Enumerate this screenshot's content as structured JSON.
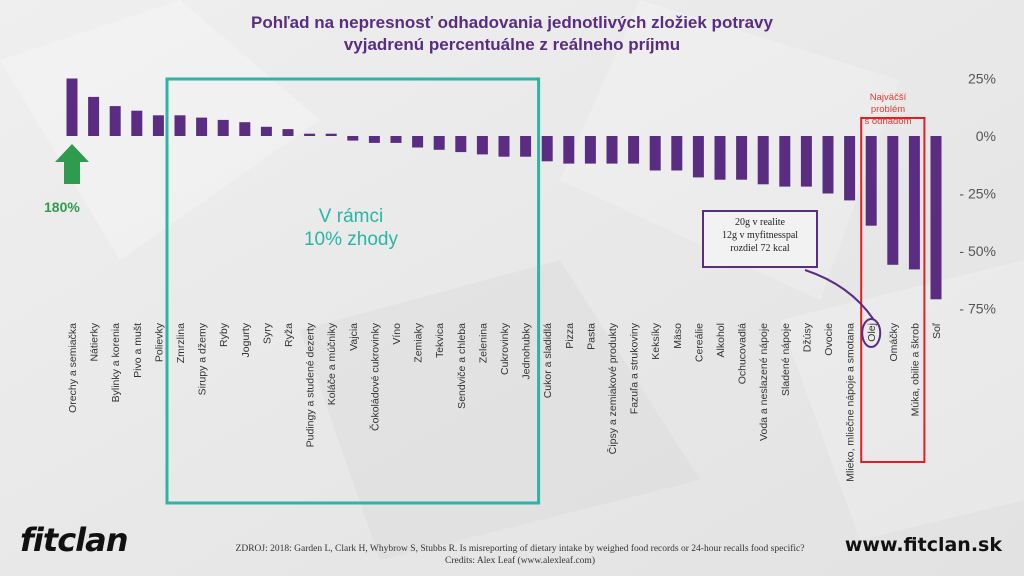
{
  "title_lines": [
    "Pohľad na nepresnosť odhadovania jednotlivých zložiek potravy",
    "vyjadrenú percentuálne z reálneho príjmu"
  ],
  "chart_data": {
    "type": "bar",
    "categories": [
      "Orechy a semiačka",
      "Nátierky",
      "Bylinky a korenia",
      "Pivo a mušt",
      "Polievky",
      "Zmrzlina",
      "Sirupy a džemy",
      "Ryby",
      "Jogurty",
      "Syry",
      "Ryža",
      "Pudingy a studené dezerty",
      "Koláče a múčniky",
      "Vajcia",
      "Čokoládové cukrovinky",
      "Víno",
      "Zemiaky",
      "Tekvica",
      "Sendviče a chleba",
      "Zelenina",
      "Cukrovinky",
      "Jednohubky",
      "Cukor a sladidlá",
      "Pizza",
      "Pasta",
      "Čipsy a zemiakové produkty",
      "Fazuľa a strukoviny",
      "Keksíky",
      "Mäso",
      "Cereálie",
      "Alkohol",
      "Ochucovadlá",
      "Voda a neslazené nápoje",
      "Sladené nápoje",
      "Džúsy",
      "Ovocie",
      "Mlieko, mliečne nápoje a smotana",
      "Olej",
      "Omáčky",
      "Múka, obilie a škrob",
      "Soľ"
    ],
    "values": [
      25,
      17,
      13,
      11,
      9,
      9,
      8,
      7,
      6,
      4,
      3,
      1,
      1,
      -2,
      -3,
      -3,
      -5,
      -6,
      -7,
      -8,
      -9,
      -9,
      -11,
      -12,
      -12,
      -12,
      -12,
      -15,
      -15,
      -18,
      -19,
      -19,
      -21,
      -22,
      -22,
      -25,
      -28,
      -39,
      -56,
      -58,
      -71
    ],
    "ylim": [
      -75,
      25
    ],
    "yticks": [
      25,
      0,
      -25,
      -50,
      -75
    ],
    "ytick_labels": [
      "25%",
      "0%",
      "- 25%",
      "- 50%",
      "- 75%"
    ],
    "grid": false,
    "colors": {
      "bar": "#5a2d82",
      "agree_box": "#2ab5a5",
      "highlight_box": "#e31e24",
      "arrow": "#2f9b4f"
    },
    "annotations": {
      "first_bar_actual": "180%",
      "agreement_box_text": [
        "V rámci",
        "10% zhody"
      ],
      "agreement_range": [
        5,
        21
      ],
      "highlight_text": [
        "Najväčší",
        "problém",
        "s odhadom"
      ],
      "highlight_range": [
        37,
        39
      ],
      "callout_text": [
        "20g v realite",
        "12g v myfitnesspal",
        "rozdiel 72 kcal"
      ],
      "callout_target": 37
    }
  },
  "footer": {
    "logo": "fitclan",
    "website": "www.fitclan.sk",
    "source_lines": [
      "ZDROJ: 2018: Garden L, Clark H, Whybrow S, Stubbs R. Is misreporting of dietary intake by weighed food records or 24-hour recalls food specific?",
      "Credits: Alex Leaf (www.alexleaf.com)"
    ]
  }
}
